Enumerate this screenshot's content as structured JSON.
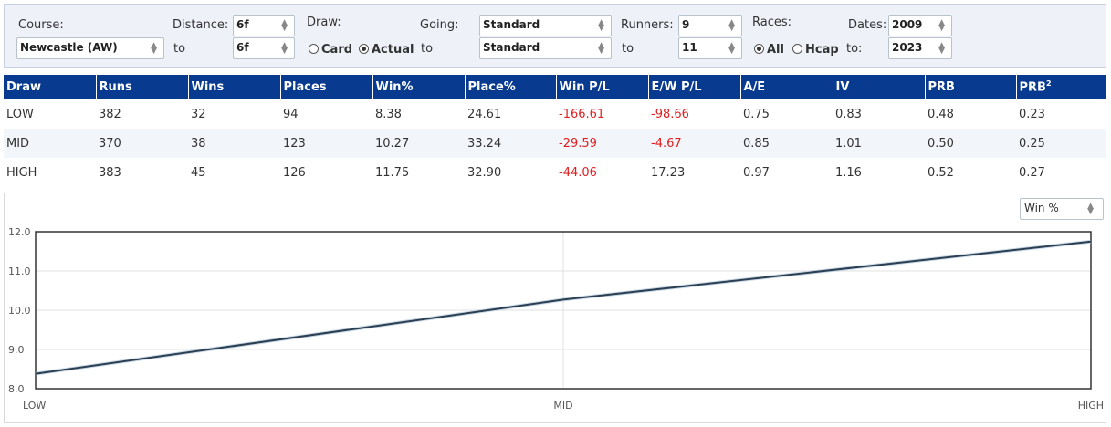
{
  "filters": {
    "course_label": "Course:",
    "course_value": "Newcastle (AW)",
    "distance_label": "Distance:",
    "distance_from": "6f",
    "to_label": "to",
    "distance_to": "6f",
    "draw_label": "Draw:",
    "draw_options": [
      "Card",
      "Actual"
    ],
    "draw_selected": "Actual",
    "going_label": "Going:",
    "going_from": "Standard",
    "going_to": "Standard",
    "runners_label": "Runners:",
    "runners_from": "9",
    "runners_to": "11",
    "races_label": "Races:",
    "races_options": [
      "All",
      "Hcap"
    ],
    "races_selected": "All",
    "dates_label": "Dates:",
    "dates_from": "2009",
    "dates_to_label": "to:",
    "dates_to": "2023"
  },
  "table": {
    "headers": [
      "Draw",
      "Runs",
      "Wins",
      "Places",
      "Win%",
      "Place%",
      "Win P/L",
      "E/W P/L",
      "A/E",
      "IV",
      "PRB",
      "PRB"
    ],
    "header_sup": "2",
    "rows": [
      [
        "LOW",
        "382",
        "32",
        "94",
        "8.38",
        "24.61",
        "-166.61",
        "-98.66",
        "0.75",
        "0.83",
        "0.48",
        "0.23"
      ],
      [
        "MID",
        "370",
        "38",
        "123",
        "10.27",
        "33.24",
        "-29.59",
        "-4.67",
        "0.85",
        "1.01",
        "0.50",
        "0.25"
      ],
      [
        "HIGH",
        "383",
        "45",
        "126",
        "11.75",
        "32.90",
        "-44.06",
        "17.23",
        "0.97",
        "1.16",
        "0.52",
        "0.27"
      ]
    ]
  },
  "metric_select": "Win %",
  "chart_data": {
    "type": "line",
    "categories": [
      "LOW",
      "MID",
      "HIGH"
    ],
    "values": [
      8.38,
      10.27,
      11.75
    ],
    "ylim": [
      8.0,
      12.0
    ],
    "yticks": [
      "8.0",
      "9.0",
      "10.0",
      "11.0",
      "12.0"
    ],
    "grid": true,
    "line_color": "#2b3f52"
  }
}
